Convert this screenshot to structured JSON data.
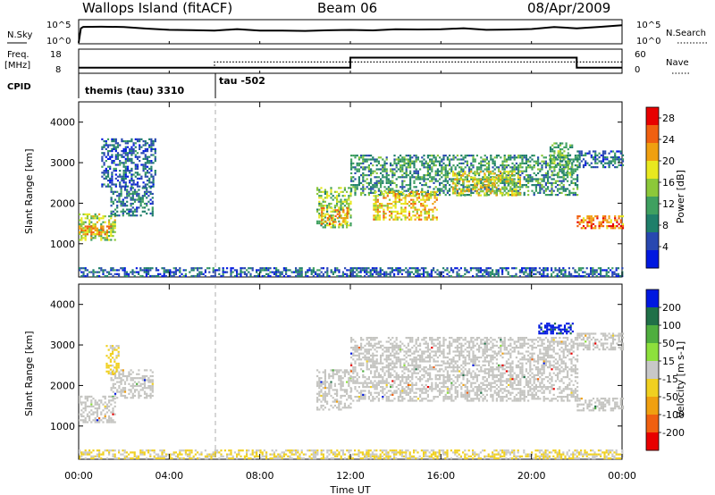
{
  "header": {
    "station": "Wallops Island (fitACF)",
    "beam": "Beam 06",
    "date": "08/Apr/2009"
  },
  "top_panels": {
    "nsky_label": "N.Sky",
    "nsearch_label": "N.Search",
    "freq_label_line1": "Freq.",
    "freq_label_line2": "[MHz]",
    "nave_label": "Nave",
    "cpid_label": "CPID",
    "log_ticks": [
      "10^5",
      "10^0"
    ],
    "freq_ticks": [
      "18",
      "8"
    ],
    "nave_ticks": [
      "60",
      "0"
    ],
    "cpid_segments": [
      {
        "label": "themis (tau) 3310",
        "start_hour": 0
      },
      {
        "label": "tau -502",
        "start_hour": 6
      }
    ]
  },
  "x_axis": {
    "label": "Time UT",
    "ticks": [
      "00:00",
      "04:00",
      "08:00",
      "12:00",
      "16:00",
      "20:00",
      "00:00"
    ]
  },
  "colors": {
    "power_scale": [
      "#0018e0",
      "#2848b0",
      "#1f7f6a",
      "#3fa060",
      "#8cc83a",
      "#e8e820",
      "#f0a010",
      "#f06010",
      "#e80000"
    ],
    "velocity_scale": [
      "#0018e0",
      "#207048",
      "#4fae3f",
      "#8de03c",
      "#c8c8c8",
      "#f0d020",
      "#f0a010",
      "#f06010",
      "#e80000"
    ],
    "ground_scatter": "#c4c4c0"
  },
  "chart_data": [
    {
      "type": "line",
      "title": "N.Sky / N.Search",
      "x": [
        0.0,
        0.1,
        0.2,
        1.0,
        2.0,
        3.0,
        4.0,
        5.0,
        6.0,
        7.0,
        8.0,
        9.0,
        10.0,
        11.0,
        12.0,
        13.0,
        14.0,
        15.0,
        16.0,
        17.0,
        18.0,
        19.0,
        20.0,
        21.0,
        22.0,
        23.0,
        24.0
      ],
      "series": [
        {
          "name": "N.Sky",
          "values": [
            0.2,
            3.2,
            3.5,
            3.6,
            3.4,
            3.2,
            3.1,
            2.9,
            2.8,
            2.9,
            2.9,
            2.8,
            2.8,
            2.9,
            2.8,
            2.9,
            2.9,
            3.0,
            2.9,
            3.1,
            3.0,
            3.1,
            3.2,
            3.3,
            3.2,
            3.6,
            3.8
          ]
        }
      ],
      "ylim": [
        0,
        5
      ],
      "yscale": "log",
      "xlim": [
        0,
        24
      ]
    },
    {
      "type": "line",
      "title": "Freq. [MHz] / Nave",
      "x": [
        0,
        6,
        6,
        12,
        12,
        22,
        22,
        24
      ],
      "series": [
        {
          "name": "Freq.",
          "values": [
            10.3,
            10.3,
            10.3,
            10.3,
            14.5,
            14.5,
            10.3,
            10.3
          ]
        },
        {
          "name": "Nave",
          "values": [
            14,
            14,
            28,
            28,
            28,
            28,
            28,
            28
          ]
        }
      ],
      "ylim": [
        8,
        18
      ],
      "y2lim": [
        0,
        60
      ],
      "xlim": [
        0,
        24
      ]
    },
    {
      "type": "heatmap",
      "title": "Power",
      "xlabel": "Time UT",
      "ylabel": "Slant Range [km]",
      "colorbar_label": "Power [dB]",
      "colorbar_ticks": [
        "4",
        "8",
        "12",
        "16",
        "20",
        "24",
        "28"
      ],
      "colorbar_range": [
        0,
        30
      ],
      "yticks": [
        "1000",
        "2000",
        "3000",
        "4000"
      ],
      "xlim": [
        0,
        24
      ],
      "ylim": [
        180,
        4500
      ],
      "regions": [
        {
          "t0": 0.0,
          "t1": 1.6,
          "r_low": 1100,
          "r_high": 1750,
          "power": 16
        },
        {
          "t0": 0.0,
          "t1": 1.4,
          "r_low": 1250,
          "r_high": 1450,
          "power": 22
        },
        {
          "t0": 1.4,
          "t1": 3.3,
          "r_low": 1700,
          "r_high": 2400,
          "power": 8
        },
        {
          "t0": 1.0,
          "t1": 3.4,
          "r_low": 2400,
          "r_high": 3600,
          "power": 6
        },
        {
          "t0": 10.5,
          "t1": 12.0,
          "r_low": 1400,
          "r_high": 2400,
          "power": 14
        },
        {
          "t0": 10.7,
          "t1": 11.9,
          "r_low": 1500,
          "r_high": 1900,
          "power": 22
        },
        {
          "t0": 12.0,
          "t1": 22.0,
          "r_low": 2200,
          "r_high": 3200,
          "power": 10
        },
        {
          "t0": 13.0,
          "t1": 15.8,
          "r_low": 1600,
          "r_high": 2300,
          "power": 20
        },
        {
          "t0": 16.5,
          "t1": 19.5,
          "r_low": 2200,
          "r_high": 2800,
          "power": 18
        },
        {
          "t0": 20.8,
          "t1": 21.8,
          "r_low": 2700,
          "r_high": 3500,
          "power": 12
        },
        {
          "t0": 22.0,
          "t1": 24.0,
          "r_low": 1400,
          "r_high": 1700,
          "power": 24
        },
        {
          "t0": 22.0,
          "t1": 24.0,
          "r_low": 2900,
          "r_high": 3300,
          "power": 7
        },
        {
          "t0": 0.0,
          "t1": 24.0,
          "r_low": 200,
          "r_high": 420,
          "power": 6
        }
      ]
    },
    {
      "type": "heatmap",
      "title": "Velocity",
      "xlabel": "Time UT",
      "ylabel": "Slant Range [km]",
      "colorbar_label": "Velocity [m s-1]",
      "colorbar_ticks": [
        "200",
        "100",
        "50",
        "15",
        "-15",
        "-50",
        "-100",
        "-200"
      ],
      "colorbar_range": [
        -250,
        250
      ],
      "yticks": [
        "1000",
        "2000",
        "3000",
        "4000"
      ],
      "xlim": [
        0,
        24
      ],
      "ylim": [
        180,
        4500
      ],
      "regions": [
        {
          "t0": 0.0,
          "t1": 1.6,
          "r_low": 1100,
          "r_high": 1750,
          "velocity": 0,
          "ground_scatter": true
        },
        {
          "t0": 1.4,
          "t1": 3.3,
          "r_low": 1700,
          "r_high": 2400,
          "velocity": 0,
          "ground_scatter": true
        },
        {
          "t0": 1.2,
          "t1": 1.8,
          "r_low": 2300,
          "r_high": 3000,
          "velocity": -40
        },
        {
          "t0": 10.5,
          "t1": 12.0,
          "r_low": 1400,
          "r_high": 2400,
          "velocity": 0,
          "ground_scatter": true
        },
        {
          "t0": 12.0,
          "t1": 22.0,
          "r_low": 1600,
          "r_high": 3200,
          "velocity": 0,
          "ground_scatter": true
        },
        {
          "t0": 20.3,
          "t1": 21.8,
          "r_low": 3300,
          "r_high": 3550,
          "velocity": 210
        },
        {
          "t0": 22.0,
          "t1": 24.0,
          "r_low": 1400,
          "r_high": 1700,
          "velocity": 0,
          "ground_scatter": true
        },
        {
          "t0": 22.0,
          "t1": 24.0,
          "r_low": 2900,
          "r_high": 3300,
          "velocity": 0,
          "ground_scatter": true
        },
        {
          "t0": 0.0,
          "t1": 24.0,
          "r_low": 200,
          "r_high": 420,
          "velocity": -30
        }
      ]
    }
  ]
}
